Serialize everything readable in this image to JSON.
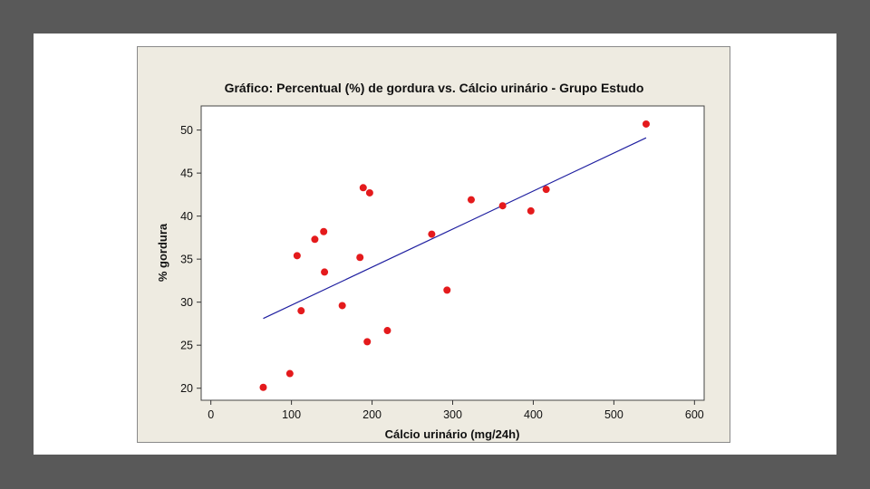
{
  "chart_data": {
    "type": "scatter",
    "title": "Gráfico: Percentual (%) de gordura vs. Cálcio urinário -  Grupo Estudo",
    "xlabel": "Cálcio urinário (mg/24h)",
    "ylabel": "% gordura",
    "xlim": [
      -12,
      612
    ],
    "ylim": [
      18.6,
      52.8
    ],
    "xticks": [
      0,
      100,
      200,
      300,
      400,
      500,
      600
    ],
    "yticks": [
      20,
      25,
      30,
      35,
      40,
      45,
      50
    ],
    "grid": false,
    "legend": "none",
    "series": [
      {
        "marker_color": "#e41a1c",
        "points": [
          {
            "x": 65,
            "y": 20.1
          },
          {
            "x": 98,
            "y": 21.7
          },
          {
            "x": 107,
            "y": 35.4
          },
          {
            "x": 112,
            "y": 29.0
          },
          {
            "x": 129,
            "y": 37.3
          },
          {
            "x": 140,
            "y": 38.2
          },
          {
            "x": 141,
            "y": 33.5
          },
          {
            "x": 163,
            "y": 29.6
          },
          {
            "x": 185,
            "y": 35.2
          },
          {
            "x": 189,
            "y": 43.3
          },
          {
            "x": 194,
            "y": 25.4
          },
          {
            "x": 197,
            "y": 42.7
          },
          {
            "x": 219,
            "y": 26.7
          },
          {
            "x": 274,
            "y": 37.9
          },
          {
            "x": 293,
            "y": 31.4
          },
          {
            "x": 323,
            "y": 41.9
          },
          {
            "x": 362,
            "y": 41.2
          },
          {
            "x": 397,
            "y": 40.6
          },
          {
            "x": 416,
            "y": 43.1
          },
          {
            "x": 540,
            "y": 50.7
          }
        ]
      }
    ],
    "fit_line": {
      "color": "#1f1fa0",
      "points": [
        {
          "x": 65,
          "y": 28.1
        },
        {
          "x": 540,
          "y": 49.1
        }
      ]
    }
  }
}
